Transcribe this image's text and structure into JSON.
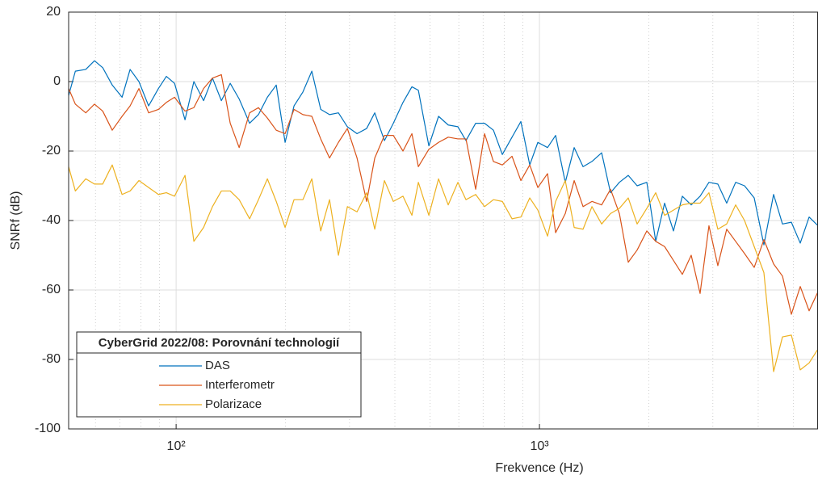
{
  "chart_data": {
    "type": "line",
    "xlabel": "Frekvence (Hz)",
    "ylabel": "SNRf (dB)",
    "xscale": "log",
    "grid": true,
    "minor_grid": true,
    "legend_title": "CyberGrid 2022/08: Porovnání technologií",
    "legend_loc": "lower left",
    "xlim": [
      50.6,
      5843
    ],
    "ylim": [
      -100,
      20
    ],
    "xticks": [
      {
        "value": 100,
        "label": "10²"
      },
      {
        "value": 1000,
        "label": "10³"
      }
    ],
    "xminorticks": [
      60,
      70,
      80,
      90,
      200,
      300,
      400,
      500,
      600,
      700,
      800,
      900,
      2000,
      3000,
      4000,
      5000
    ],
    "yticks": [
      -100,
      -80,
      -60,
      -40,
      -20,
      0,
      20
    ],
    "x": [
      50.6,
      52.8,
      56.4,
      59.6,
      62.8,
      66.7,
      71.0,
      74.7,
      79.0,
      84.0,
      89.4,
      94.0,
      99.0,
      105.8,
      111.9,
      119.0,
      125.9,
      133.2,
      140.9,
      149.1,
      159.3,
      168.5,
      178.3,
      188.6,
      199.5,
      211.1,
      223.3,
      236.3,
      250.0,
      264.4,
      279.7,
      296.0,
      314.7,
      334.5,
      352.1,
      374.4,
      396.1,
      421.1,
      445.6,
      464.2,
      496.1,
      527.6,
      560.9,
      596.4,
      627.7,
      667.5,
      706.2,
      747.0,
      790.3,
      840.4,
      888.9,
      940.4,
      989.8,
      1052.5,
      1107.8,
      1177.9,
      1246.2,
      1318.3,
      1394.6,
      1483.0,
      1568.9,
      1659.6,
      1755.6,
      1857.1,
      1974.7,
      2089.3,
      2210.2,
      2338.0,
      2473.2,
      2616.2,
      2767.6,
      2927.6,
      3097.0,
      3276.0,
      3467.4,
      3667.9,
      3900.0,
      4146.8,
      4409.9,
      4665.4,
      4935.4,
      5221.5,
      5523.2,
      5843
    ],
    "series": [
      {
        "name": "DAS",
        "color": "#0072BD",
        "values": [
          -4,
          3,
          3.5,
          6,
          4,
          -1,
          -4.5,
          3.5,
          0,
          -7,
          -2,
          1.5,
          -0.5,
          -11,
          0,
          -5.5,
          1,
          -5.5,
          -0.5,
          -5,
          -12,
          -9.5,
          -4.5,
          -1,
          -17.5,
          -7,
          -3,
          3,
          -8,
          -9.5,
          -9,
          -13,
          -15,
          -13.5,
          -9,
          -17,
          -12,
          -6,
          -1.5,
          -2.5,
          -18.5,
          -10,
          -12.5,
          -13,
          -17,
          -12,
          -12,
          -14,
          -21,
          -16,
          -11.5,
          -24,
          -17.5,
          -19,
          -15.5,
          -29,
          -19,
          -24.5,
          -23,
          -20.5,
          -32,
          -29,
          -27,
          -30,
          -29,
          -46,
          -35,
          -43,
          -33,
          -35.5,
          -33,
          -29,
          -29.5,
          -35,
          -29,
          -30,
          -33.5,
          -47,
          -32.5,
          -41,
          -40.5,
          -46.5,
          -39,
          -41.5
        ]
      },
      {
        "name": "Interferometr",
        "color": "#D95319",
        "values": [
          -2,
          -6.5,
          -9,
          -6.5,
          -8.5,
          -14,
          -10,
          -7,
          -2,
          -9,
          -8,
          -6,
          -4.5,
          -8.5,
          -7.5,
          -2,
          1,
          2,
          -12,
          -19,
          -9,
          -7.5,
          -10.5,
          -14,
          -15,
          -8,
          -9.5,
          -10,
          -16.5,
          -22,
          -17.5,
          -13.5,
          -22,
          -34.5,
          -22,
          -15.5,
          -15.5,
          -20,
          -15,
          -24.5,
          -19.5,
          -17.5,
          -16,
          -16.5,
          -16.5,
          -31,
          -15,
          -23,
          -24,
          -21.5,
          -28.5,
          -24,
          -30.5,
          -26.5,
          -43.5,
          -38,
          -28.5,
          -36,
          -34.5,
          -35.5,
          -31,
          -38,
          -52,
          -48.5,
          -43,
          -46,
          -47.5,
          -51.5,
          -55.5,
          -50,
          -61,
          -41.5,
          -53,
          -42.5,
          -46,
          -49.5,
          -53.5,
          -45.5,
          -52.5,
          -56,
          -67,
          -59,
          -66,
          -60.5
        ]
      },
      {
        "name": "Polarizace",
        "color": "#EDB120",
        "values": [
          -24.5,
          -31.5,
          -28,
          -29.5,
          -29.5,
          -24,
          -32.5,
          -31.5,
          -28.5,
          -30.5,
          -32.5,
          -32,
          -33,
          -27,
          -46,
          -42,
          -36,
          -31.5,
          -31.5,
          -34,
          -39.5,
          -34,
          -28,
          -34.5,
          -42,
          -34,
          -34,
          -28,
          -43,
          -34,
          -50,
          -36,
          -37.5,
          -32,
          -42.5,
          -28.5,
          -34.5,
          -33,
          -38.5,
          -29,
          -38.5,
          -28,
          -35.5,
          -29,
          -34,
          -32.5,
          -36,
          -34,
          -34.5,
          -39.5,
          -39,
          -33.5,
          -37,
          -44.5,
          -34.5,
          -28.5,
          -42,
          -42.5,
          -36,
          -41,
          -38,
          -36.5,
          -33.5,
          -41,
          -36.5,
          -32,
          -38.5,
          -37,
          -35.5,
          -35,
          -35,
          -32,
          -42.5,
          -41,
          -35.5,
          -40,
          -47.5,
          -55,
          -83.5,
          -73.5,
          -73,
          -83,
          -81,
          -77
        ]
      }
    ]
  }
}
